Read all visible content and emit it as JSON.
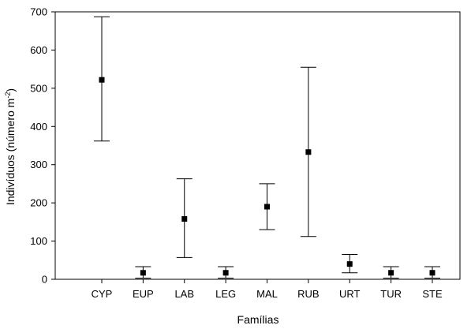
{
  "chart_data": {
    "type": "scatter",
    "title": "",
    "xlabel": "Famílias",
    "ylabel_prefix": "Indivíduos (número m",
    "ylabel_superscript": "-2",
    "ylabel_suffix": ")",
    "ylabel": "Indivíduos (número m-2)",
    "ylim": [
      0,
      700
    ],
    "yticks": [
      "0",
      "100",
      "200",
      "300",
      "400",
      "500",
      "600",
      "700"
    ],
    "categories": [
      "CYP",
      "EUP",
      "LAB",
      "LEG",
      "MAL",
      "RUB",
      "URT",
      "TUR",
      "STE"
    ],
    "series": [
      {
        "values": [
          522,
          17,
          158,
          17,
          190,
          333,
          40,
          17,
          17
        ],
        "error_low": [
          362,
          3,
          57,
          3,
          130,
          112,
          17,
          3,
          3
        ],
        "error_high": [
          687,
          33,
          263,
          33,
          250,
          555,
          65,
          33,
          33
        ]
      }
    ],
    "grid": false,
    "marker": "square",
    "color": "#000000"
  }
}
